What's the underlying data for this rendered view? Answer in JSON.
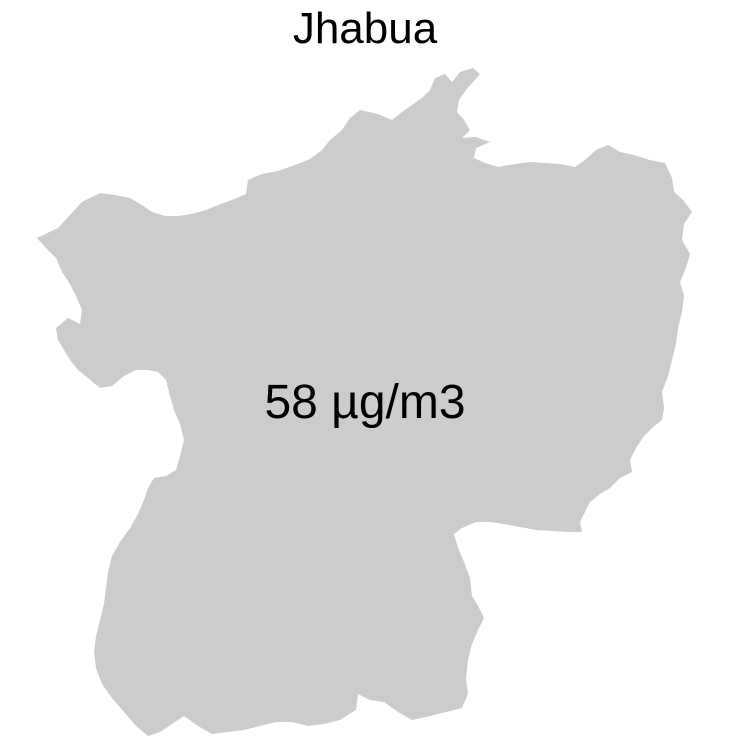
{
  "map": {
    "region_name": "Jhabua",
    "value_label": "58 µg/m3",
    "fill_color": "#cccccc",
    "background_color": "#ffffff"
  }
}
